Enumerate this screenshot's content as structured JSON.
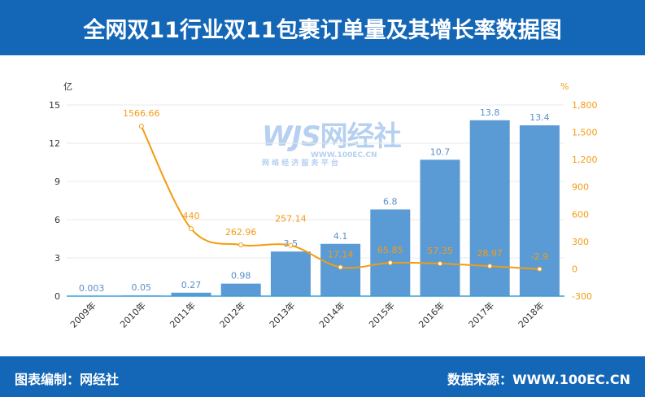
{
  "title": "全网双11行业双11包裹订单量及其增长率数据图",
  "footer": {
    "left": "图表编制：网经社",
    "right": "数据来源：WWW.100EC.CN"
  },
  "watermark": {
    "logo": "WJS网经社",
    "url": "WWW.100EC.CN",
    "tagline": "网 络 经 济 服 务 平 台"
  },
  "chart_data": {
    "type": "bar+line",
    "categories": [
      "2009年",
      "2010年",
      "2011年",
      "2012年",
      "2013年",
      "2014年",
      "2015年",
      "2016年",
      "2017年",
      "2018年"
    ],
    "series": [
      {
        "type": "bar",
        "axis": "left",
        "values": [
          0.003,
          0.05,
          0.27,
          0.98,
          3.5,
          4.1,
          6.8,
          10.7,
          13.8,
          13.4
        ],
        "labels": [
          "0.003",
          "0.05",
          "0.27",
          "0.98",
          "3.5",
          "4.1",
          "6.8",
          "10.7",
          "13.8",
          "13.4"
        ],
        "color": "#5b9bd5"
      },
      {
        "type": "line",
        "axis": "right",
        "values": [
          null,
          1566.66,
          440,
          262.96,
          257.14,
          17.14,
          65.85,
          57.35,
          28.97,
          -2.9
        ],
        "labels": [
          "",
          "1566.66",
          "440",
          "262.96",
          "257.14",
          "17.14",
          "65.85",
          "57.35",
          "28.97",
          "-2.9"
        ],
        "color": "#f39c12"
      }
    ],
    "y_left": {
      "unit": "亿",
      "range": [
        0,
        15
      ],
      "ticks": [
        "0",
        "3",
        "6",
        "9",
        "12",
        "15"
      ]
    },
    "y_right": {
      "unit": "%",
      "range": [
        -300,
        1800
      ],
      "ticks": [
        "-300",
        "0",
        "300",
        "600",
        "900",
        "1,200",
        "1,500",
        "1,800"
      ]
    },
    "grid": true
  }
}
